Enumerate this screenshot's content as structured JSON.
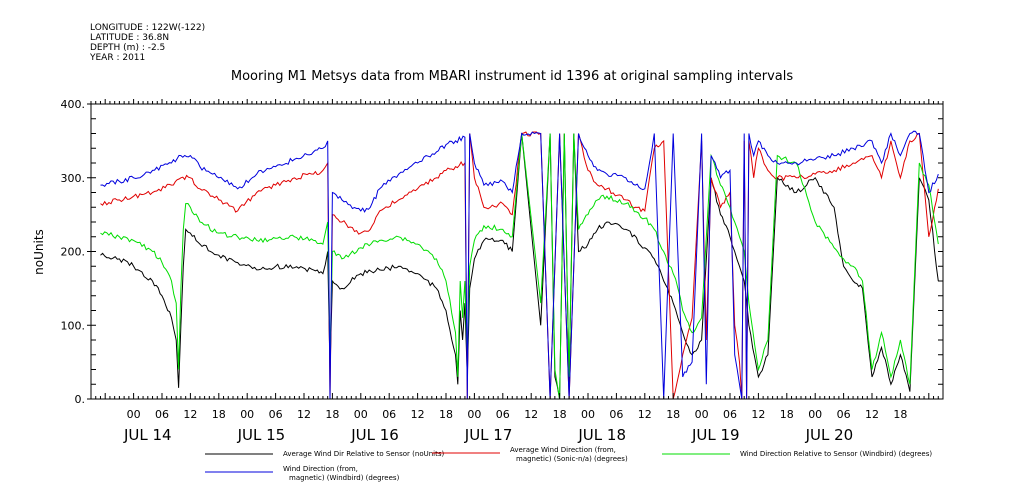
{
  "meta": {
    "longitude": "LONGITUDE : 122W(-122)",
    "latitude": "LATITUDE : 36.8N",
    "depth": "DEPTH (m) : -2.5",
    "year": "YEAR : 2011"
  },
  "chart_data": {
    "type": "line",
    "title": "Mooring M1 Metsys data from MBARI instrument id 1396 at original sampling intervals",
    "xlabel": "",
    "ylabel": "noUnits",
    "ylim": [
      0,
      400
    ],
    "yticks": [
      0,
      100,
      200,
      300,
      400
    ],
    "ytick_labels": [
      "0.",
      "100.",
      "200.",
      "300.",
      "400."
    ],
    "xlim_hours": [
      -9,
      171
    ],
    "day_labels": [
      "JUL 14",
      "JUL 15",
      "JUL 16",
      "JUL 17",
      "JUL 18",
      "JUL 19",
      "JUL 20"
    ],
    "hour_labels": [
      "00",
      "06",
      "12",
      "18"
    ],
    "grid": false,
    "legend_position": "bottom",
    "series": [
      {
        "name": "Average Wind Dir Relative to Sensor (noUnits)",
        "color": "#000000",
        "x": [
          -7,
          -3,
          0,
          4,
          6,
          8,
          9,
          9.5,
          10,
          10.5,
          11,
          12,
          14,
          18,
          22,
          26,
          30,
          34,
          38,
          40,
          41,
          41.5,
          42,
          44,
          48,
          52,
          56,
          60,
          64,
          66,
          68,
          68.5,
          69,
          69.5,
          70,
          70.5,
          71,
          72,
          74,
          78,
          80,
          82,
          86,
          88,
          89,
          90,
          91,
          92,
          93,
          94,
          96,
          98,
          100,
          104,
          108,
          110,
          112,
          114,
          115,
          116,
          118,
          120,
          122,
          124,
          126,
          127,
          128,
          129,
          130,
          132,
          134,
          136,
          140,
          144,
          148,
          150,
          151,
          152,
          154,
          156,
          158,
          160,
          162,
          164,
          166,
          168,
          170
        ],
        "y": [
          195,
          190,
          180,
          160,
          140,
          110,
          80,
          15,
          100,
          180,
          230,
          225,
          210,
          195,
          185,
          175,
          180,
          178,
          175,
          170,
          200,
          40,
          160,
          150,
          170,
          175,
          180,
          170,
          150,
          120,
          60,
          20,
          120,
          80,
          130,
          30,
          150,
          190,
          215,
          215,
          200,
          360,
          100,
          360,
          30,
          0,
          360,
          20,
          360,
          200,
          210,
          230,
          240,
          230,
          205,
          190,
          160,
          130,
          110,
          90,
          60,
          80,
          300,
          250,
          220,
          200,
          180,
          160,
          100,
          30,
          60,
          300,
          280,
          300,
          260,
          180,
          170,
          160,
          150,
          30,
          70,
          20,
          60,
          10,
          300,
          270,
          160
        ],
        "values": [
          195,
          190,
          180,
          160,
          140,
          110,
          80,
          15,
          100,
          180,
          230,
          225,
          210,
          195,
          185,
          175,
          180,
          178,
          175,
          170,
          200,
          40,
          160,
          150,
          170,
          175,
          180,
          170,
          150,
          120,
          60,
          20,
          120,
          80,
          130,
          30,
          150,
          190,
          215,
          215,
          200,
          360,
          100,
          360,
          30,
          0,
          360,
          20,
          360,
          200,
          210,
          230,
          240,
          230,
          205,
          190,
          160,
          130,
          110,
          90,
          60,
          80,
          300,
          250,
          220,
          200,
          180,
          160,
          100,
          30,
          60,
          300,
          280,
          300,
          260,
          180,
          170,
          160,
          150,
          30,
          70,
          20,
          60,
          10,
          300,
          270,
          160
        ]
      },
      {
        "name": "Average Wind Direction (from, magnetic) (Sonic-n/a) (degrees)",
        "color": "#e00000",
        "x": [
          -7,
          -3,
          0,
          4,
          8,
          10,
          12,
          14,
          18,
          22,
          26,
          30,
          34,
          38,
          40,
          41,
          41.5,
          42,
          44,
          48,
          50,
          52,
          56,
          60,
          64,
          66,
          68,
          70,
          70.5,
          71,
          72,
          74,
          78,
          80,
          82,
          86,
          88,
          90,
          92,
          94,
          96,
          98,
          100,
          104,
          106,
          108,
          109,
          110,
          112,
          114,
          116,
          118,
          120,
          121,
          122,
          124,
          126,
          127,
          128,
          128.5,
          129,
          129.5,
          130,
          131,
          132,
          134,
          136,
          140,
          144,
          148,
          152,
          156,
          158,
          160,
          162,
          164,
          166,
          168,
          170
        ],
        "y": [
          265,
          270,
          275,
          280,
          290,
          300,
          300,
          285,
          270,
          255,
          280,
          290,
          300,
          305,
          310,
          320,
          0,
          250,
          240,
          225,
          230,
          255,
          270,
          285,
          300,
          310,
          315,
          320,
          0,
          360,
          300,
          260,
          265,
          250,
          360,
          360,
          0,
          360,
          0,
          360,
          310,
          290,
          285,
          270,
          260,
          255,
          300,
          340,
          350,
          0,
          60,
          110,
          350,
          80,
          300,
          260,
          280,
          100,
          50,
          0,
          350,
          0,
          350,
          300,
          340,
          310,
          300,
          300,
          305,
          310,
          320,
          330,
          300,
          350,
          300,
          350,
          360,
          220,
          285
        ],
        "values": [
          265,
          270,
          275,
          280,
          290,
          300,
          300,
          285,
          270,
          255,
          280,
          290,
          300,
          305,
          310,
          320,
          0,
          250,
          240,
          225,
          230,
          255,
          270,
          285,
          300,
          310,
          315,
          320,
          0,
          360,
          300,
          260,
          265,
          250,
          360,
          360,
          0,
          360,
          0,
          360,
          310,
          290,
          285,
          270,
          260,
          255,
          300,
          340,
          350,
          0,
          60,
          110,
          350,
          80,
          300,
          260,
          280,
          100,
          50,
          0,
          350,
          0,
          350,
          300,
          340,
          310,
          300,
          300,
          305,
          310,
          320,
          330,
          300,
          350,
          300,
          350,
          360,
          220,
          285
        ]
      },
      {
        "name": "Wind Direction Relative to Sensor (Windbird) (degrees)",
        "color": "#00dd00",
        "x": [
          -7,
          -3,
          0,
          4,
          6,
          8,
          9,
          9.5,
          10,
          10.5,
          11,
          12,
          14,
          18,
          22,
          26,
          30,
          34,
          38,
          40,
          41,
          41.5,
          42,
          44,
          48,
          52,
          56,
          60,
          64,
          66,
          68,
          68.5,
          69,
          69.5,
          70,
          70.5,
          71,
          72,
          74,
          78,
          80,
          82,
          86,
          88,
          89,
          90,
          91,
          92,
          93,
          94,
          96,
          98,
          100,
          104,
          108,
          110,
          112,
          114,
          115,
          116,
          118,
          120,
          122,
          124,
          126,
          127,
          128,
          129,
          130,
          132,
          134,
          136,
          140,
          144,
          148,
          150,
          151,
          152,
          154,
          156,
          158,
          160,
          162,
          164,
          166,
          168,
          170
        ],
        "y": [
          225,
          220,
          215,
          200,
          185,
          160,
          130,
          40,
          150,
          230,
          265,
          260,
          240,
          225,
          220,
          215,
          218,
          220,
          215,
          210,
          240,
          60,
          200,
          190,
          205,
          215,
          220,
          210,
          190,
          160,
          90,
          30,
          160,
          110,
          160,
          50,
          180,
          215,
          235,
          230,
          220,
          360,
          130,
          360,
          40,
          0,
          360,
          30,
          360,
          230,
          250,
          270,
          275,
          265,
          245,
          230,
          200,
          170,
          150,
          120,
          90,
          110,
          330,
          290,
          260,
          240,
          220,
          200,
          130,
          40,
          80,
          330,
          320,
          240,
          205,
          190,
          185,
          180,
          160,
          40,
          90,
          30,
          80,
          20,
          320,
          290,
          210
        ],
        "values": [
          225,
          220,
          215,
          200,
          185,
          160,
          130,
          40,
          150,
          230,
          265,
          260,
          240,
          225,
          220,
          215,
          218,
          220,
          215,
          210,
          240,
          60,
          200,
          190,
          205,
          215,
          220,
          210,
          190,
          160,
          90,
          30,
          160,
          110,
          160,
          50,
          180,
          215,
          235,
          230,
          220,
          360,
          130,
          360,
          40,
          0,
          360,
          30,
          360,
          230,
          250,
          270,
          275,
          265,
          245,
          230,
          200,
          170,
          150,
          120,
          90,
          110,
          330,
          290,
          260,
          240,
          220,
          200,
          130,
          40,
          80,
          330,
          320,
          240,
          205,
          190,
          185,
          180,
          160,
          40,
          90,
          30,
          80,
          20,
          320,
          290,
          210
        ]
      },
      {
        "name": "Wind Direction (from, magnetic) (Windbird) (degrees)",
        "color": "#0000dd",
        "x": [
          -7,
          -3,
          0,
          4,
          8,
          10,
          12,
          14,
          18,
          22,
          26,
          30,
          34,
          38,
          40,
          41,
          41.5,
          42,
          44,
          48,
          50,
          52,
          56,
          60,
          64,
          66,
          68,
          70,
          70.5,
          71,
          72,
          74,
          78,
          80,
          82,
          86,
          88,
          90,
          92,
          94,
          96,
          98,
          100,
          104,
          106,
          108,
          109,
          110,
          112,
          114,
          116,
          118,
          120,
          121,
          122,
          124,
          126,
          127,
          128,
          128.5,
          129,
          129.5,
          130,
          131,
          132,
          134,
          136,
          140,
          144,
          148,
          152,
          156,
          158,
          160,
          162,
          164,
          166,
          168,
          170
        ],
        "y": [
          290,
          295,
          300,
          310,
          320,
          330,
          330,
          315,
          300,
          285,
          305,
          315,
          325,
          335,
          340,
          350,
          0,
          280,
          270,
          255,
          260,
          285,
          305,
          320,
          335,
          345,
          350,
          355,
          0,
          360,
          320,
          290,
          295,
          280,
          360,
          360,
          0,
          360,
          0,
          360,
          330,
          310,
          305,
          300,
          290,
          285,
          320,
          360,
          0,
          360,
          30,
          50,
          360,
          20,
          330,
          300,
          310,
          60,
          20,
          0,
          360,
          0,
          360,
          330,
          350,
          330,
          320,
          320,
          325,
          330,
          340,
          350,
          320,
          360,
          330,
          360,
          360,
          280,
          305
        ],
        "values": [
          290,
          295,
          300,
          310,
          320,
          330,
          330,
          315,
          300,
          285,
          305,
          315,
          325,
          335,
          340,
          350,
          0,
          280,
          270,
          255,
          260,
          285,
          305,
          320,
          335,
          345,
          350,
          355,
          0,
          360,
          320,
          290,
          295,
          280,
          360,
          360,
          0,
          360,
          0,
          360,
          330,
          310,
          305,
          300,
          290,
          285,
          320,
          360,
          0,
          360,
          30,
          50,
          360,
          20,
          330,
          300,
          310,
          60,
          20,
          0,
          360,
          0,
          360,
          330,
          350,
          330,
          320,
          320,
          325,
          330,
          340,
          350,
          320,
          360,
          330,
          360,
          360,
          280,
          305
        ]
      }
    ],
    "legend": [
      {
        "line1": "Average Wind Dir Relative to Sensor (noUnits)",
        "line2": "",
        "color": "#000000"
      },
      {
        "line1": "Average Wind Direction (from,",
        "line2": "magnetic) (Sonic-n/a) (degrees)",
        "color": "#e00000"
      },
      {
        "line1": "Wind Direction Relative to Sensor (Windbird) (degrees)",
        "line2": "",
        "color": "#00dd00"
      },
      {
        "line1": "Wind Direction (from,",
        "line2": "magnetic) (Windbird) (degrees)",
        "color": "#0000dd"
      }
    ]
  }
}
